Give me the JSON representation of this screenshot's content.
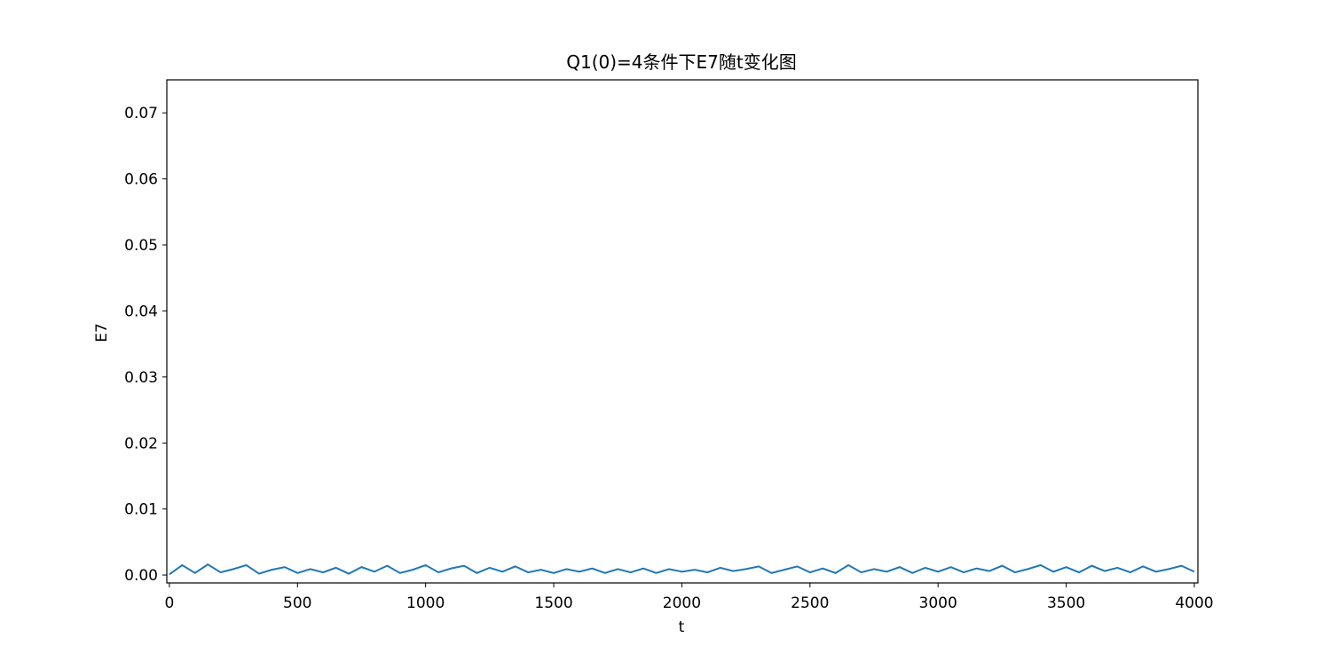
{
  "chart_data": {
    "type": "line",
    "title": "Q1(0)=4条件下E7随t变化图",
    "x_label": "t",
    "y_label": "E7",
    "x": [
      0,
      50,
      100,
      150,
      200,
      250,
      300,
      350,
      400,
      450,
      500,
      550,
      600,
      650,
      700,
      750,
      800,
      850,
      900,
      950,
      1000,
      1050,
      1100,
      1150,
      1200,
      1250,
      1300,
      1350,
      1400,
      1450,
      1500,
      1550,
      1600,
      1650,
      1700,
      1750,
      1800,
      1850,
      1900,
      1950,
      2000,
      2050,
      2100,
      2150,
      2200,
      2250,
      2300,
      2350,
      2400,
      2450,
      2500,
      2550,
      2600,
      2650,
      2700,
      2750,
      2800,
      2850,
      2900,
      2950,
      3000,
      3050,
      3100,
      3150,
      3200,
      3250,
      3300,
      3350,
      3400,
      3450,
      3500,
      3550,
      3600,
      3650,
      3700,
      3750,
      3800,
      3850,
      3900,
      3950,
      4000
    ],
    "series": [
      {
        "name": "E7",
        "color": "#1f77b4",
        "values": [
          0.0001,
          0.0015,
          0.0003,
          0.0016,
          0.0004,
          0.0009,
          0.0015,
          0.0002,
          0.0008,
          0.0012,
          0.0003,
          0.0009,
          0.0004,
          0.0011,
          0.0002,
          0.0012,
          0.0005,
          0.0014,
          0.0003,
          0.0008,
          0.0015,
          0.0004,
          0.001,
          0.0014,
          0.0003,
          0.0011,
          0.0005,
          0.0013,
          0.0004,
          0.0008,
          0.0003,
          0.0009,
          0.0005,
          0.001,
          0.0003,
          0.0009,
          0.0004,
          0.001,
          0.0003,
          0.0009,
          0.0005,
          0.0008,
          0.0004,
          0.0011,
          0.0006,
          0.0009,
          0.0013,
          0.0003,
          0.0008,
          0.0013,
          0.0004,
          0.001,
          0.0003,
          0.0015,
          0.0004,
          0.0009,
          0.0005,
          0.0012,
          0.0003,
          0.0011,
          0.0005,
          0.0012,
          0.0004,
          0.001,
          0.0006,
          0.0014,
          0.0004,
          0.0009,
          0.0015,
          0.0005,
          0.0012,
          0.0004,
          0.0014,
          0.0006,
          0.0011,
          0.0004,
          0.0013,
          0.0005,
          0.0009,
          0.0014,
          0.0005
        ]
      }
    ],
    "xlim": [
      -10,
      4014
    ],
    "ylim": [
      -0.0012,
      0.075
    ],
    "xticks": [
      0,
      500,
      1000,
      1500,
      2000,
      2500,
      3000,
      3500,
      4000
    ],
    "yticks": [
      {
        "value": 0,
        "label": "0.00"
      },
      0.01,
      0.02,
      0.03,
      0.04,
      0.05,
      0.06,
      0.07
    ]
  }
}
